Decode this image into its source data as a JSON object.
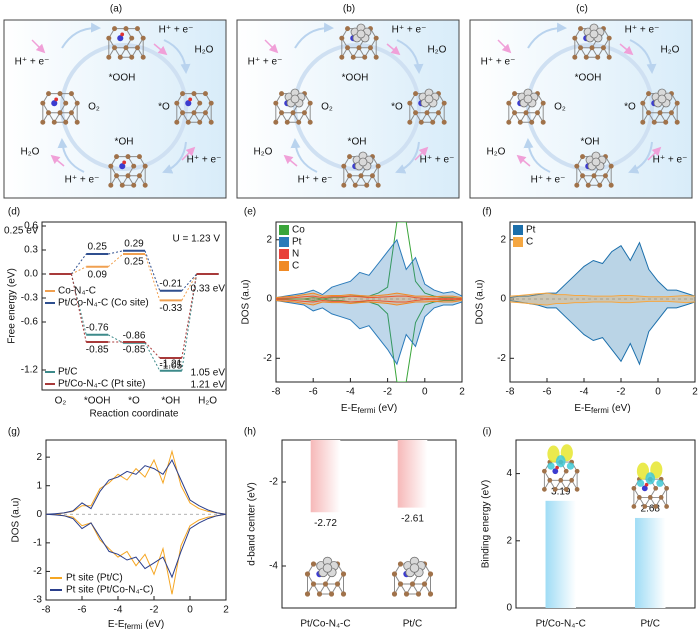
{
  "diagrams": [
    {
      "label": "(a)",
      "center": "O₂",
      "states": [
        "*OOH",
        "*O",
        "*OH"
      ],
      "steps": [
        "H⁺ + e⁻",
        "H⁺ + e⁻",
        "H⁺ + e⁻",
        "H⁺ + e⁻"
      ],
      "water": [
        "H₂O",
        "H₂O"
      ]
    },
    {
      "label": "(b)",
      "center": "O₂",
      "states": [
        "*OOH",
        "*O",
        "*OH"
      ],
      "steps": [
        "H⁺ + e⁻",
        "H⁺ + e⁻",
        "H⁺ + e⁻",
        "H⁺ + e⁻"
      ],
      "water": [
        "H₂O",
        "H₂O"
      ]
    },
    {
      "label": "(c)",
      "center": "O₂",
      "states": [
        "*OOH",
        "*O",
        "*OH"
      ],
      "steps": [
        "H⁺ + e⁻",
        "H⁺ + e⁻",
        "H⁺ + e⁻",
        "H⁺ + e⁻"
      ],
      "water": [
        "H₂O",
        "H₂O"
      ]
    }
  ],
  "chart_data": [
    {
      "type": "step",
      "label": "(d)",
      "title": "U = 1.23 V",
      "xlabel": "Reaction coordinate",
      "ylabel": "Free energy (eV)",
      "categories": [
        "O₂",
        "*OOH",
        "*O",
        "*OH",
        "H₂O"
      ],
      "ylim": [
        -1.45,
        0.65
      ],
      "yticks": [
        0.6,
        0.3,
        {
          "value": 0,
          "label": "0.0"
        },
        -0.3,
        -0.6,
        -1.2
      ],
      "series": [
        {
          "name": "Co-N₄-C",
          "color": "#f0a050",
          "values": [
            0,
            0.09,
            0.25,
            -0.33,
            0
          ]
        },
        {
          "name": "Pt/Co-N₄-C (Co site)",
          "color": "#2f4f8f",
          "values": [
            0,
            0.25,
            0.29,
            -0.21,
            0
          ]
        },
        {
          "name": "Pt/C",
          "color": "#3d8a8a",
          "values": [
            0,
            -0.76,
            -0.86,
            -1.21,
            0
          ]
        },
        {
          "name": "Pt/Co-N₄-C (Pt site)",
          "color": "#a83a3a",
          "values": [
            0,
            -0.85,
            -0.85,
            -1.05,
            0
          ]
        }
      ],
      "annotations": [
        {
          "text": "0.25 eV",
          "color": "#2f4f8f"
        },
        {
          "text": "0.33 eV",
          "color": "#f0a050"
        },
        {
          "text": "1.05 eV",
          "color": "#a83a3a"
        },
        {
          "text": "1.21 eV",
          "color": "#3d8a8a"
        }
      ]
    },
    {
      "type": "line",
      "label": "(e)",
      "ylabel": "DOS (a.u)",
      "xlabel": {
        "text": "E-E",
        "sub": "fermi",
        "unit": "(eV)"
      },
      "xlim": [
        -8,
        2
      ],
      "xticks": [
        -8,
        -6,
        -4,
        -2,
        0,
        2
      ],
      "ylim": [
        -2.8,
        2.6
      ],
      "yticks": [
        -2,
        0,
        2
      ],
      "legend": "upper left",
      "x": [
        -8,
        -7.5,
        -7,
        -6.5,
        -6,
        -5.5,
        -5,
        -4.5,
        -4,
        -3.5,
        -3,
        -2.5,
        -2,
        -1.5,
        -1,
        -0.5,
        0,
        0.5,
        1,
        1.5,
        2
      ],
      "series": [
        {
          "name": "Co",
          "color": "#3aa53a",
          "fill": false,
          "values": [
            0,
            0,
            0,
            0,
            0.05,
            0,
            0.05,
            0.05,
            0.1,
            0.1,
            0.1,
            0.2,
            0.4,
            2.6,
            2.6,
            0.6,
            0.2,
            0.1,
            0.05,
            0.05,
            0
          ],
          "values_down": [
            0,
            0,
            0,
            0,
            -0.05,
            0,
            -0.05,
            -0.05,
            -0.1,
            -0.1,
            -0.1,
            -0.2,
            -0.5,
            -2.8,
            -2.8,
            -0.8,
            -0.2,
            -0.1,
            -0.05,
            -0.05,
            0
          ]
        },
        {
          "name": "Pt",
          "color": "#2b7bba",
          "fill": true,
          "values": [
            0.05,
            0.1,
            0.15,
            0.2,
            0.3,
            0.15,
            0.4,
            0.5,
            0.6,
            0.9,
            0.8,
            1.2,
            1.6,
            2.0,
            1.0,
            1.4,
            0.5,
            0.3,
            0.2,
            0.25,
            0.1
          ],
          "values_down": [
            -0.05,
            -0.1,
            -0.15,
            -0.2,
            -0.4,
            -0.3,
            -0.5,
            -0.6,
            -0.7,
            -1.0,
            -0.9,
            -1.3,
            -1.7,
            -2.2,
            -1.2,
            -1.6,
            -0.6,
            -0.3,
            -0.2,
            -0.2,
            -0.1
          ]
        },
        {
          "name": "N",
          "color": "#e8413a",
          "fill": false,
          "values": [
            0.02,
            0.03,
            0.05,
            0.08,
            0.1,
            0.05,
            0.08,
            0.08,
            0.1,
            0.08,
            0.05,
            0.06,
            0.08,
            0.1,
            0.1,
            0.05,
            0.02,
            0.02,
            0.02,
            0.02,
            0.02
          ],
          "values_down": [
            -0.02,
            -0.03,
            -0.05,
            -0.08,
            -0.1,
            -0.05,
            -0.08,
            -0.08,
            -0.1,
            -0.08,
            -0.05,
            -0.06,
            -0.08,
            -0.1,
            -0.1,
            -0.05,
            -0.02,
            -0.02,
            -0.02,
            -0.02,
            -0.02
          ]
        },
        {
          "name": "C",
          "color": "#f08a24",
          "fill": true,
          "values": [
            0.05,
            0.08,
            0.1,
            0.15,
            0.2,
            0.1,
            0.12,
            0.12,
            0.15,
            0.12,
            0.1,
            0.12,
            0.15,
            0.2,
            0.15,
            0.1,
            0.1,
            0.08,
            0.1,
            0.1,
            0.05
          ],
          "values_down": [
            -0.05,
            -0.08,
            -0.1,
            -0.15,
            -0.2,
            -0.1,
            -0.12,
            -0.12,
            -0.15,
            -0.12,
            -0.1,
            -0.12,
            -0.15,
            -0.2,
            -0.15,
            -0.1,
            -0.1,
            -0.08,
            -0.1,
            -0.1,
            -0.05
          ]
        }
      ]
    },
    {
      "type": "line",
      "label": "(f)",
      "ylabel": "DOS (a.u)",
      "xlabel": {
        "text": "E-E",
        "sub": "fermi",
        "unit": "(eV)"
      },
      "xlim": [
        -8,
        2
      ],
      "xticks": [
        -8,
        -6,
        -4,
        -2,
        0,
        2
      ],
      "ylim": [
        -2.8,
        2.6
      ],
      "yticks": [
        -2,
        0,
        2
      ],
      "legend": "upper left",
      "x": [
        -8,
        -7.5,
        -7,
        -6.5,
        -6,
        -5.5,
        -5,
        -4.5,
        -4,
        -3.5,
        -3,
        -2.5,
        -2,
        -1.5,
        -1,
        -0.5,
        0,
        0.5,
        1,
        1.5,
        2
      ],
      "series": [
        {
          "name": "Pt",
          "color": "#1c6fab",
          "fill": true,
          "values": [
            0.05,
            0.1,
            0.1,
            0.15,
            0.2,
            0.2,
            0.5,
            0.8,
            1.1,
            1.3,
            1.2,
            1.6,
            1.8,
            1.3,
            1.9,
            1.0,
            0.6,
            0.3,
            0.3,
            0.2,
            0.1
          ],
          "values_down": [
            -0.05,
            -0.1,
            -0.15,
            -0.2,
            -0.3,
            -0.3,
            -0.6,
            -0.9,
            -1.2,
            -1.4,
            -1.3,
            -1.7,
            -2.1,
            -1.5,
            -2.2,
            -1.1,
            -0.7,
            -0.3,
            -0.3,
            -0.2,
            -0.1
          ]
        },
        {
          "name": "C",
          "color": "#f5a742",
          "fill": true,
          "values": [
            0.1,
            0.12,
            0.15,
            0.18,
            0.2,
            0.15,
            0.15,
            0.12,
            0.12,
            0.1,
            0.1,
            0.1,
            0.12,
            0.12,
            0.1,
            0.08,
            0.08,
            0.08,
            0.1,
            0.12,
            0.1
          ],
          "values_down": [
            -0.1,
            -0.12,
            -0.15,
            -0.18,
            -0.2,
            -0.15,
            -0.15,
            -0.12,
            -0.12,
            -0.1,
            -0.1,
            -0.1,
            -0.12,
            -0.12,
            -0.1,
            -0.08,
            -0.08,
            -0.08,
            -0.1,
            -0.12,
            -0.1
          ]
        }
      ]
    },
    {
      "type": "line",
      "label": "(g)",
      "ylabel": "DOS (a.u)",
      "xlabel": {
        "text": "E-E",
        "sub": "fermi",
        "unit": "(eV)"
      },
      "xlim": [
        -8,
        2
      ],
      "xticks": [
        -8,
        -6,
        -4,
        -2,
        0,
        2
      ],
      "ylim": [
        -3,
        2.6
      ],
      "yticks": [
        -3,
        -2,
        -1,
        0,
        1,
        2
      ],
      "legend": "lower left",
      "x": [
        -8,
        -7.5,
        -7,
        -6.5,
        -6,
        -5.5,
        -5,
        -4.5,
        -4,
        -3.5,
        -3,
        -2.5,
        -2,
        -1.5,
        -1,
        -0.5,
        0,
        0.5,
        1,
        1.5,
        2
      ],
      "series": [
        {
          "name": "Pt site (Pt/C)",
          "color": "#f5a623",
          "fill": false,
          "values": [
            0,
            0,
            0.05,
            0.1,
            0.3,
            0.3,
            0.9,
            1.1,
            1.4,
            1.2,
            1.6,
            1.3,
            1.9,
            1.1,
            2.2,
            1.0,
            0.4,
            0.2,
            0.1,
            0.05,
            0
          ],
          "values_down": [
            0,
            0,
            -0.05,
            -0.1,
            -0.4,
            -0.3,
            -0.9,
            -1.2,
            -1.5,
            -1.3,
            -1.8,
            -1.4,
            -2.1,
            -1.2,
            -2.8,
            -1.1,
            -0.4,
            -0.2,
            -0.1,
            -0.05,
            0
          ]
        },
        {
          "name": "Pt site (Pt/Co-N₄-C)",
          "color": "#2b3f8c",
          "fill": false,
          "values": [
            0,
            0.02,
            0.05,
            0.12,
            0.4,
            0.2,
            0.8,
            1.2,
            1.3,
            1.5,
            1.4,
            1.7,
            1.6,
            1.4,
            1.9,
            1.2,
            0.5,
            0.3,
            0.15,
            0.05,
            0
          ],
          "values_down": [
            0,
            -0.02,
            -0.05,
            -0.15,
            -0.5,
            -0.3,
            -0.8,
            -1.3,
            -1.4,
            -1.6,
            -1.5,
            -1.9,
            -1.7,
            -1.5,
            -2.2,
            -1.3,
            -0.5,
            -0.3,
            -0.15,
            -0.05,
            0
          ]
        }
      ]
    },
    {
      "type": "bar",
      "label": "(h)",
      "ylabel": "d-band center (eV)",
      "categories": [
        "Pt/Co-N₄-C",
        "Pt/C"
      ],
      "values": [
        -2.72,
        -2.61
      ],
      "color": "#f6b8b8",
      "ylim": [
        -5,
        -1
      ],
      "yticks": [
        -4,
        -2
      ]
    },
    {
      "type": "bar",
      "label": "(i)",
      "ylabel": "Binding energy (eV)",
      "categories": [
        "Pt/Co-N₄-C",
        "Pt/C"
      ],
      "values": [
        3.19,
        2.68
      ],
      "color": "#9fdcf5",
      "ylim": [
        0,
        5
      ],
      "yticks": [
        0,
        2,
        4
      ]
    }
  ]
}
